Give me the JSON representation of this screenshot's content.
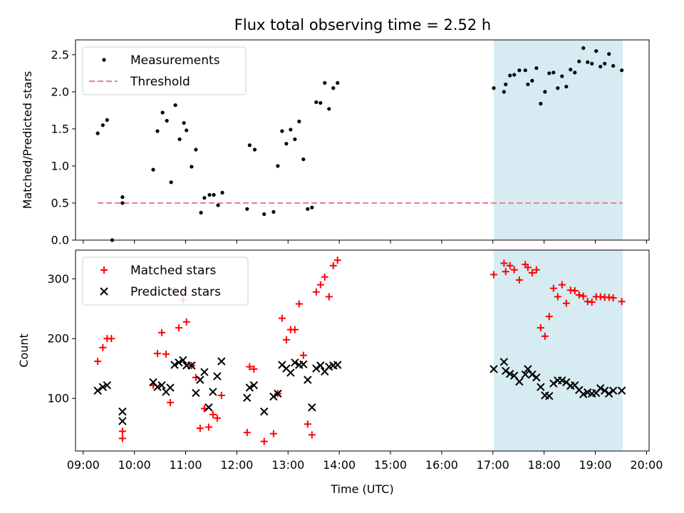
{
  "title": "Flux total observing time = 2.52 h",
  "chart_data": [
    {
      "type": "scatter",
      "ylabel": "Matched/Predicted stars",
      "ylim": [
        0,
        2.7
      ],
      "xlim": [
        "08:51",
        "20:03"
      ],
      "yticks": [
        0.0,
        0.5,
        1.0,
        1.5,
        2.0,
        2.5
      ],
      "ytick_labels": [
        "0.0",
        "0.5",
        "1.0",
        "1.5",
        "2.0",
        "2.5"
      ],
      "highlight_span": [
        "17:01",
        "19:32"
      ],
      "highlight_color": "#add8e6",
      "legend": {
        "position": "upper-left",
        "entries": [
          "Measurements",
          "Threshold"
        ]
      },
      "threshold": {
        "name": "Threshold",
        "y": 0.5,
        "x_start": "09:17",
        "x_end": "19:32",
        "color": "#f08080"
      },
      "series": [
        {
          "name": "Measurements",
          "color": "#000000",
          "points": [
            [
              "09:17",
              1.44
            ],
            [
              "09:23",
              1.55
            ],
            [
              "09:28",
              1.62
            ],
            [
              "09:34",
              0.0
            ],
            [
              "09:46",
              0.58
            ],
            [
              "09:46",
              0.5
            ],
            [
              "10:22",
              0.95
            ],
            [
              "10:27",
              1.47
            ],
            [
              "10:33",
              1.72
            ],
            [
              "10:38",
              1.61
            ],
            [
              "10:43",
              0.78
            ],
            [
              "10:48",
              1.82
            ],
            [
              "10:53",
              1.36
            ],
            [
              "10:58",
              1.58
            ],
            [
              "11:01",
              1.48
            ],
            [
              "11:07",
              0.99
            ],
            [
              "11:12",
              1.22
            ],
            [
              "11:18",
              0.37
            ],
            [
              "11:22",
              0.57
            ],
            [
              "11:28",
              0.61
            ],
            [
              "11:33",
              0.61
            ],
            [
              "11:38",
              0.47
            ],
            [
              "11:43",
              0.64
            ],
            [
              "12:12",
              0.42
            ],
            [
              "12:15",
              1.28
            ],
            [
              "12:21",
              1.22
            ],
            [
              "12:32",
              0.35
            ],
            [
              "12:43",
              0.38
            ],
            [
              "12:48",
              1.0
            ],
            [
              "12:53",
              1.47
            ],
            [
              "12:58",
              1.3
            ],
            [
              "13:03",
              1.49
            ],
            [
              "13:08",
              1.36
            ],
            [
              "13:13",
              1.6
            ],
            [
              "13:18",
              1.09
            ],
            [
              "13:23",
              0.42
            ],
            [
              "13:28",
              0.44
            ],
            [
              "13:33",
              1.86
            ],
            [
              "13:38",
              1.85
            ],
            [
              "13:43",
              2.12
            ],
            [
              "13:48",
              1.77
            ],
            [
              "13:53",
              2.05
            ],
            [
              "13:58",
              2.12
            ],
            [
              "17:01",
              2.05
            ],
            [
              "17:13",
              2.0
            ],
            [
              "17:15",
              2.1
            ],
            [
              "17:20",
              2.22
            ],
            [
              "17:25",
              2.23
            ],
            [
              "17:31",
              2.29
            ],
            [
              "17:38",
              2.29
            ],
            [
              "17:41",
              2.1
            ],
            [
              "17:46",
              2.15
            ],
            [
              "17:51",
              2.32
            ],
            [
              "17:56",
              1.84
            ],
            [
              "18:01",
              2.0
            ],
            [
              "18:06",
              2.25
            ],
            [
              "18:11",
              2.26
            ],
            [
              "18:16",
              2.05
            ],
            [
              "18:21",
              2.21
            ],
            [
              "18:26",
              2.07
            ],
            [
              "18:31",
              2.3
            ],
            [
              "18:36",
              2.26
            ],
            [
              "18:41",
              2.41
            ],
            [
              "18:46",
              2.59
            ],
            [
              "18:51",
              2.4
            ],
            [
              "18:56",
              2.38
            ],
            [
              "19:01",
              2.55
            ],
            [
              "19:06",
              2.34
            ],
            [
              "19:11",
              2.38
            ],
            [
              "19:16",
              2.51
            ],
            [
              "19:21",
              2.35
            ],
            [
              "19:31",
              2.29
            ]
          ]
        }
      ]
    },
    {
      "type": "scatter",
      "xlabel": "Time (UTC)",
      "ylabel": "Count",
      "ylim": [
        12,
        348
      ],
      "xlim": [
        "08:51",
        "20:03"
      ],
      "yticks": [
        100,
        200,
        300
      ],
      "ytick_labels": [
        "100",
        "200",
        "300"
      ],
      "xticks": [
        "09:00",
        "10:00",
        "11:00",
        "12:00",
        "13:00",
        "14:00",
        "15:00",
        "16:00",
        "17:00",
        "18:00",
        "19:00",
        "20:00"
      ],
      "xtick_labels": [
        "09:00",
        "10:00",
        "11:00",
        "12:00",
        "13:00",
        "14:00",
        "15:00",
        "16:00",
        "17:00",
        "18:00",
        "19:00",
        "20:00"
      ],
      "highlight_span": [
        "17:01",
        "19:32"
      ],
      "highlight_color": "#add8e6",
      "legend": {
        "position": "upper-left",
        "entries": [
          "Matched stars",
          "Predicted stars"
        ]
      },
      "series": [
        {
          "name": "Matched stars",
          "marker": "plus",
          "color": "#ff0000",
          "points": [
            [
              "09:17",
              162
            ],
            [
              "09:23",
              185
            ],
            [
              "09:28",
              200
            ],
            [
              "09:33",
              200
            ],
            [
              "09:46",
              45
            ],
            [
              "09:46",
              33
            ],
            [
              "10:22",
              122
            ],
            [
              "10:27",
              175
            ],
            [
              "10:32",
              210
            ],
            [
              "10:37",
              174
            ],
            [
              "10:42",
              93
            ],
            [
              "10:47",
              280
            ],
            [
              "10:52",
              218
            ],
            [
              "10:57",
              265
            ],
            [
              "11:01",
              228
            ],
            [
              "11:07",
              155
            ],
            [
              "11:12",
              135
            ],
            [
              "11:17",
              50
            ],
            [
              "11:22",
              83
            ],
            [
              "11:27",
              52
            ],
            [
              "11:32",
              73
            ],
            [
              "11:37",
              67
            ],
            [
              "11:42",
              105
            ],
            [
              "12:12",
              43
            ],
            [
              "12:15",
              153
            ],
            [
              "12:20",
              149
            ],
            [
              "12:32",
              28
            ],
            [
              "12:43",
              41
            ],
            [
              "12:48",
              108
            ],
            [
              "12:53",
              234
            ],
            [
              "12:58",
              198
            ],
            [
              "13:03",
              215
            ],
            [
              "13:08",
              215
            ],
            [
              "13:13",
              258
            ],
            [
              "13:18",
              172
            ],
            [
              "13:23",
              57
            ],
            [
              "13:28",
              39
            ],
            [
              "13:33",
              278
            ],
            [
              "13:38",
              290
            ],
            [
              "13:43",
              303
            ],
            [
              "13:48",
              270
            ],
            [
              "13:53",
              322
            ],
            [
              "13:58",
              331
            ],
            [
              "17:01",
              307
            ],
            [
              "17:13",
              326
            ],
            [
              "17:15",
              312
            ],
            [
              "17:20",
              322
            ],
            [
              "17:25",
              315
            ],
            [
              "17:31",
              298
            ],
            [
              "17:38",
              324
            ],
            [
              "17:41",
              319
            ],
            [
              "17:46",
              310
            ],
            [
              "17:51",
              315
            ],
            [
              "17:56",
              218
            ],
            [
              "18:01",
              204
            ],
            [
              "18:06",
              237
            ],
            [
              "18:11",
              284
            ],
            [
              "18:16",
              270
            ],
            [
              "18:21",
              290
            ],
            [
              "18:26",
              259
            ],
            [
              "18:31",
              281
            ],
            [
              "18:36",
              280
            ],
            [
              "18:41",
              273
            ],
            [
              "18:46",
              271
            ],
            [
              "18:51",
              262
            ],
            [
              "18:56",
              261
            ],
            [
              "19:01",
              270
            ],
            [
              "19:06",
              270
            ],
            [
              "19:11",
              269
            ],
            [
              "19:16",
              269
            ],
            [
              "19:21",
              268
            ],
            [
              "19:31",
              262
            ]
          ]
        },
        {
          "name": "Predicted stars",
          "marker": "x",
          "color": "#000000",
          "points": [
            [
              "09:17",
              113
            ],
            [
              "09:23",
              119
            ],
            [
              "09:28",
              122
            ],
            [
              "09:46",
              78
            ],
            [
              "09:46",
              62
            ],
            [
              "10:22",
              127
            ],
            [
              "10:27",
              119
            ],
            [
              "10:32",
              122
            ],
            [
              "10:37",
              111
            ],
            [
              "10:42",
              118
            ],
            [
              "10:47",
              156
            ],
            [
              "10:52",
              160
            ],
            [
              "10:57",
              164
            ],
            [
              "11:01",
              155
            ],
            [
              "11:07",
              155
            ],
            [
              "11:12",
              109
            ],
            [
              "11:17",
              131
            ],
            [
              "11:22",
              144
            ],
            [
              "11:27",
              85
            ],
            [
              "11:32",
              111
            ],
            [
              "11:37",
              137
            ],
            [
              "11:42",
              162
            ],
            [
              "12:12",
              101
            ],
            [
              "12:15",
              118
            ],
            [
              "12:20",
              122
            ],
            [
              "12:32",
              78
            ],
            [
              "12:43",
              103
            ],
            [
              "12:48",
              108
            ],
            [
              "12:53",
              156
            ],
            [
              "12:58",
              150
            ],
            [
              "13:03",
              143
            ],
            [
              "13:08",
              160
            ],
            [
              "13:13",
              156
            ],
            [
              "13:18",
              157
            ],
            [
              "13:23",
              131
            ],
            [
              "13:28",
              85
            ],
            [
              "13:33",
              150
            ],
            [
              "13:38",
              155
            ],
            [
              "13:43",
              145
            ],
            [
              "13:48",
              153
            ],
            [
              "13:53",
              155
            ],
            [
              "13:58",
              156
            ],
            [
              "17:01",
              149
            ],
            [
              "17:13",
              161
            ],
            [
              "17:15",
              146
            ],
            [
              "17:20",
              141
            ],
            [
              "17:25",
              138
            ],
            [
              "17:31",
              128
            ],
            [
              "17:38",
              140
            ],
            [
              "17:41",
              149
            ],
            [
              "17:46",
              140
            ],
            [
              "17:51",
              135
            ],
            [
              "17:56",
              119
            ],
            [
              "18:01",
              105
            ],
            [
              "18:06",
              104
            ],
            [
              "18:11",
              125
            ],
            [
              "18:16",
              130
            ],
            [
              "18:21",
              130
            ],
            [
              "18:26",
              127
            ],
            [
              "18:31",
              121
            ],
            [
              "18:36",
              122
            ],
            [
              "18:41",
              114
            ],
            [
              "18:46",
              107
            ],
            [
              "18:51",
              110
            ],
            [
              "18:56",
              108
            ],
            [
              "19:01",
              109
            ],
            [
              "19:06",
              117
            ],
            [
              "19:11",
              113
            ],
            [
              "19:16",
              108
            ],
            [
              "19:21",
              113
            ],
            [
              "19:31",
              113
            ]
          ]
        }
      ]
    }
  ]
}
